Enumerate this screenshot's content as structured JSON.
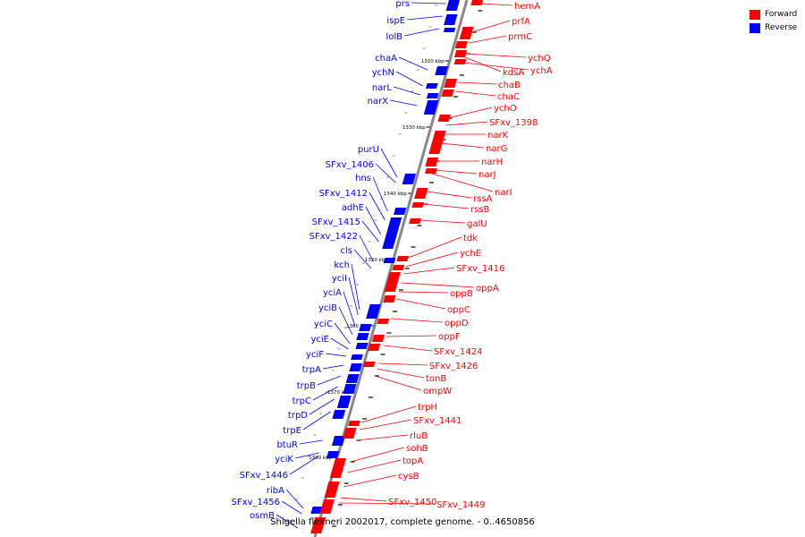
{
  "title": "Shigella flexneri 2002017, complete genome. - 0..4650856",
  "legend": [
    {
      "label": "Forward",
      "color": "#ff0000"
    },
    {
      "label": "Reverse",
      "color": "#0000ff"
    }
  ],
  "colors": {
    "forward": "#ff0000",
    "reverse": "#0000ff",
    "backbone": "#888888",
    "tick": "#000000"
  },
  "scale_labels": [
    "1320 kbp",
    "1330 kbp",
    "1340 kbp",
    "1350 kbp",
    "1360 kbp",
    "1370 kbp",
    "1380 kbp"
  ],
  "reverse_genes": [
    "prs",
    "ispE",
    "lolB",
    "chaA",
    "ychN",
    "narL",
    "narX",
    "purU",
    "SFxv_1406",
    "hns",
    "SFxv_1412",
    "adhE",
    "SFxv_1415",
    "SFxv_1422",
    "cls",
    "kch",
    "yciI",
    "yciA",
    "yciB",
    "yciC",
    "yciE",
    "yciF",
    "trpA",
    "trpB",
    "trpC",
    "trpD",
    "trpE",
    "btuR",
    "yciK",
    "SFxv_1446",
    "ribA",
    "SFxv_1456",
    "osmB"
  ],
  "forward_genes": [
    "hemA",
    "prfA",
    "prmC",
    "ychQ",
    "kdsA",
    "ychA",
    "chaB",
    "chaC",
    "ychO",
    "SFxv_1398",
    "narK",
    "narG",
    "narH",
    "narJ",
    "narI",
    "rssA",
    "rssB",
    "galU",
    "tdk",
    "ychE",
    "SFxv_1416",
    "oppA",
    "oppB",
    "oppC",
    "oppD",
    "oppF",
    "SFxv_1424",
    "SFxv_1426",
    "tonB",
    "ompW",
    "trpH",
    "SFxv_1441",
    "rluB",
    "sohB",
    "topA",
    "cysB",
    "SFxv_1450",
    "SFxv_1449"
  ]
}
